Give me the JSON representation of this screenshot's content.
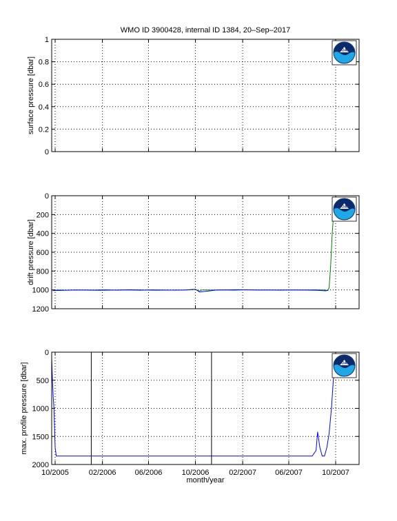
{
  "figure": {
    "title": "WMO ID 3900428, internal ID 1384, 20–Sep–2017",
    "xlabel": "month/year",
    "logo_text": "NOAA"
  },
  "chart_data": [
    {
      "type": "line",
      "ylabel": "surface pressure [dbar]",
      "ylim": [
        0,
        1
      ],
      "y_reversed": false,
      "yticks": [
        0,
        0.2,
        0.4,
        0.6,
        0.8,
        1
      ],
      "ytick_labels": [
        "0",
        "0.2",
        "0.4",
        "0.6",
        "0.8",
        "1"
      ],
      "xlim": [
        "2005-09-22",
        "2007-12-01"
      ],
      "xticks": [
        "2005-10-01",
        "2006-02-01",
        "2006-06-01",
        "2006-10-01",
        "2007-02-01",
        "2007-06-01",
        "2007-10-01"
      ],
      "xtick_labels": [],
      "grid": true,
      "series": []
    },
    {
      "type": "line",
      "ylabel": "drift pressure [dbar]",
      "ylim": [
        0,
        1200
      ],
      "y_reversed": true,
      "yticks": [
        0,
        200,
        400,
        600,
        800,
        1000,
        1200
      ],
      "ytick_labels": [
        "0",
        "200",
        "400",
        "600",
        "800",
        "1000",
        "1200"
      ],
      "xlim": [
        "2005-09-22",
        "2007-12-01"
      ],
      "xticks": [
        "2005-10-01",
        "2006-02-01",
        "2006-06-01",
        "2006-10-01",
        "2007-02-01",
        "2007-06-01",
        "2007-10-01"
      ],
      "xtick_labels": [],
      "grid": true,
      "series": [
        {
          "color": "#008000",
          "x": [
            "2005-09-25",
            "2005-10-10",
            "2005-11-05",
            "2005-12-10",
            "2006-01-10",
            "2006-02-10",
            "2006-03-10",
            "2006-04-10",
            "2006-05-10",
            "2006-06-10",
            "2006-07-10",
            "2006-08-10",
            "2006-09-10",
            "2006-10-01",
            "2006-10-10",
            "2006-10-20",
            "2006-11-10",
            "2006-12-10",
            "2007-01-10",
            "2007-02-10",
            "2007-03-10",
            "2007-04-10",
            "2007-05-10",
            "2007-06-10",
            "2007-07-10",
            "2007-08-10",
            "2007-09-01",
            "2007-09-10",
            "2007-09-14",
            "2007-09-18",
            "2007-09-22",
            "2007-09-26"
          ],
          "y": [
            1005,
            1000,
            1003,
            1000,
            1002,
            998,
            1003,
            1000,
            1004,
            999,
            1000,
            1003,
            1000,
            995,
            1012,
            1000,
            1002,
            1000,
            1003,
            999,
            1002,
            1000,
            1003,
            1000,
            1001,
            999,
            1002,
            1005,
            980,
            750,
            400,
            180
          ]
        },
        {
          "color": "#0000ff",
          "x": [
            "2005-09-25",
            "2005-11-20",
            "2006-01-25",
            "2006-04-15",
            "2006-06-20",
            "2006-09-05",
            "2006-10-01",
            "2006-10-12",
            "2006-11-25",
            "2007-01-20",
            "2007-03-20",
            "2007-05-15",
            "2007-07-10",
            "2007-08-15",
            "2007-09-05",
            "2007-09-12"
          ],
          "y": [
            1008,
            1001,
            1004,
            999,
            1003,
            1001,
            993,
            1022,
            1002,
            998,
            1002,
            1000,
            1002,
            1004,
            1010,
            1003
          ]
        }
      ]
    },
    {
      "type": "line",
      "ylabel": "max. profile pressure [dbar]",
      "ylim": [
        0,
        2000
      ],
      "y_reversed": true,
      "yticks": [
        0,
        500,
        1000,
        1500,
        2000
      ],
      "ytick_labels": [
        "0",
        "500",
        "1000",
        "1500",
        "2000"
      ],
      "xlim": [
        "2005-09-22",
        "2007-12-01"
      ],
      "xticks": [
        "2005-10-01",
        "2006-02-01",
        "2006-06-01",
        "2006-10-01",
        "2007-02-01",
        "2007-06-01",
        "2007-10-01"
      ],
      "xtick_labels": [
        "10/2005",
        "02/2006",
        "06/2006",
        "10/2006",
        "02/2007",
        "06/2007",
        "10/2007"
      ],
      "grid": true,
      "vlines": [
        "2006-01-03",
        "2006-11-12"
      ],
      "series": [
        {
          "color": "#0000ff",
          "x": [
            "2005-09-22",
            "2005-09-24",
            "2005-09-26",
            "2005-09-28",
            "2005-10-01",
            "2005-10-04",
            "2005-10-07",
            "2005-10-10",
            "2006-03-01",
            "2006-06-01",
            "2006-09-01",
            "2006-12-01",
            "2007-03-01",
            "2007-06-01",
            "2007-08-01",
            "2007-08-11",
            "2007-08-15",
            "2007-08-21",
            "2007-08-27",
            "2007-09-02",
            "2007-09-08",
            "2007-09-14",
            "2007-09-20",
            "2007-09-25",
            "2007-09-29"
          ],
          "y": [
            100,
            500,
            800,
            1000,
            1700,
            1850,
            1850,
            1850,
            1850,
            1850,
            1850,
            1850,
            1850,
            1850,
            1850,
            1750,
            1420,
            1700,
            1850,
            1850,
            1700,
            1450,
            1000,
            500,
            300
          ]
        }
      ]
    }
  ]
}
